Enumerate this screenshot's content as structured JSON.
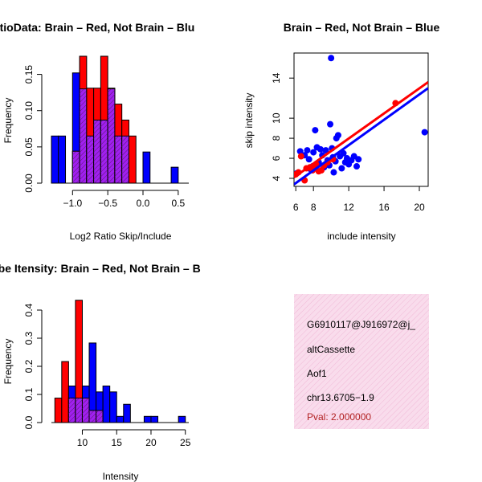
{
  "colors": {
    "red": "#ff0000",
    "blue": "#0000ff",
    "purple": "#a020f0",
    "pink_bg": "#f9dcec"
  },
  "chart_data": [
    {
      "type": "histogram",
      "title": "RatioData: Brain – Red, Not Brain – Blu",
      "xlabel": "Log2 Ratio Skip/Include",
      "ylabel": "Frequency",
      "xlim": [
        -1.3,
        0.65
      ],
      "ylim": [
        0,
        0.175
      ],
      "xticks": [
        -1.0,
        -0.5,
        0.0,
        0.5
      ],
      "xtick_labels": [
        "−1.0",
        "−0.5",
        "0.0",
        "0.5"
      ],
      "yticks": [
        0.0,
        0.05,
        0.1,
        0.15
      ],
      "ytick_labels": [
        "0.00",
        "0.05",
        "0.10",
        "0.15"
      ],
      "bin_edges": [
        -1.3,
        -1.2,
        -1.1,
        -1.0,
        -0.9,
        -0.8,
        -0.7,
        -0.6,
        -0.5,
        -0.4,
        -0.3,
        -0.2,
        -0.1,
        0.0,
        0.1,
        0.2,
        0.3,
        0.4,
        0.5,
        0.6
      ],
      "series": [
        {
          "name": "Brain",
          "color": "red",
          "values": [
            0,
            0,
            0,
            0.044,
            0.175,
            0.131,
            0.131,
            0.175,
            0.131,
            0.109,
            0.087,
            0.065,
            0,
            0,
            0,
            0,
            0,
            0,
            0
          ]
        },
        {
          "name": "Not Brain",
          "color": "blue",
          "values": [
            0.065,
            0.065,
            0,
            0.152,
            0.13,
            0.065,
            0.087,
            0.087,
            0.13,
            0.065,
            0.065,
            0,
            0,
            0.043,
            0,
            0,
            0,
            0.022,
            0
          ]
        }
      ]
    },
    {
      "type": "scatter",
      "title": "Brain – Red, Not Brain – Blue",
      "xlabel": "include intensity",
      "ylabel": "skip intensity",
      "xlim": [
        5.8,
        21
      ],
      "ylim": [
        3.2,
        16.5
      ],
      "xticks": [
        6,
        8,
        12,
        16,
        20
      ],
      "xtick_labels": [
        "6",
        "8",
        "12",
        "16",
        "20"
      ],
      "yticks": [
        4,
        6,
        8,
        10,
        14
      ],
      "ytick_labels": [
        "4",
        "6",
        "8",
        "10",
        "14"
      ],
      "series": [
        {
          "name": "Brain",
          "color": "red",
          "points": [
            [
              6.0,
              4.4
            ],
            [
              6.3,
              4.6
            ],
            [
              6.6,
              6.2
            ],
            [
              7.0,
              3.8
            ],
            [
              7.2,
              5.0
            ],
            [
              7.6,
              5.1
            ],
            [
              7.9,
              4.8
            ],
            [
              8.1,
              5.0
            ],
            [
              8.3,
              5.4
            ],
            [
              8.6,
              4.7
            ],
            [
              8.9,
              4.8
            ],
            [
              9.2,
              5.3
            ],
            [
              9.6,
              5.6
            ],
            [
              10.2,
              5.9
            ],
            [
              17.3,
              11.5
            ]
          ],
          "fit_line": [
            [
              5.8,
              4.1
            ],
            [
              21,
              13.6
            ]
          ]
        },
        {
          "name": "Not Brain",
          "color": "blue",
          "points": [
            [
              6.1,
              4.5
            ],
            [
              6.5,
              6.7
            ],
            [
              7.0,
              6.3
            ],
            [
              7.3,
              6.8
            ],
            [
              7.5,
              5.9
            ],
            [
              7.7,
              4.9
            ],
            [
              7.9,
              5.2
            ],
            [
              8.0,
              6.6
            ],
            [
              8.2,
              8.8
            ],
            [
              8.4,
              7.1
            ],
            [
              8.6,
              5.6
            ],
            [
              8.8,
              6.9
            ],
            [
              9.0,
              6.3
            ],
            [
              9.2,
              5.1
            ],
            [
              9.4,
              6.8
            ],
            [
              9.6,
              5.8
            ],
            [
              9.8,
              5.3
            ],
            [
              9.9,
              9.4
            ],
            [
              10.0,
              16.0
            ],
            [
              10.1,
              7.0
            ],
            [
              10.2,
              6.1
            ],
            [
              10.3,
              4.6
            ],
            [
              10.5,
              5.7
            ],
            [
              10.6,
              8.0
            ],
            [
              10.8,
              8.3
            ],
            [
              11.0,
              6.2
            ],
            [
              11.2,
              5.0
            ],
            [
              11.4,
              6.5
            ],
            [
              11.6,
              5.6
            ],
            [
              11.8,
              6.0
            ],
            [
              12.0,
              5.4
            ],
            [
              12.3,
              5.8
            ],
            [
              12.6,
              6.2
            ],
            [
              12.9,
              5.2
            ],
            [
              13.1,
              5.9
            ],
            [
              20.6,
              8.6
            ]
          ],
          "fit_line": [
            [
              5.8,
              3.4
            ],
            [
              21,
              13.0
            ]
          ]
        }
      ]
    },
    {
      "type": "histogram",
      "title": "Probe Itensity: Brain – Red, Not Brain – B",
      "xlabel": "Intensity",
      "ylabel": "Frequency",
      "xlim": [
        5.5,
        25.5
      ],
      "ylim": [
        0,
        0.44
      ],
      "xticks": [
        10,
        15,
        20,
        25
      ],
      "xtick_labels": [
        "10",
        "15",
        "20",
        "25"
      ],
      "yticks": [
        0.0,
        0.1,
        0.2,
        0.3,
        0.4
      ],
      "ytick_labels": [
        "0.0",
        "0.1",
        "0.2",
        "0.3",
        "0.4"
      ],
      "bin_edges": [
        6,
        7,
        8,
        9,
        10,
        11,
        12,
        13,
        14,
        15,
        16,
        17,
        18,
        19,
        20,
        21,
        22,
        23,
        24,
        25
      ],
      "series": [
        {
          "name": "Brain",
          "color": "red",
          "values": [
            0.087,
            0.217,
            0.087,
            0.435,
            0.087,
            0.043,
            0.043,
            0,
            0,
            0,
            0,
            0,
            0,
            0,
            0,
            0,
            0,
            0,
            0
          ]
        },
        {
          "name": "Not Brain",
          "color": "blue",
          "values": [
            0,
            0,
            0.13,
            0.087,
            0.13,
            0.283,
            0.109,
            0.13,
            0.109,
            0.022,
            0.065,
            0,
            0,
            0.022,
            0.022,
            0,
            0,
            0,
            0.022
          ]
        }
      ]
    }
  ],
  "info_panel": {
    "probe_id": "G6910117@J916972@j_",
    "event_type": "altCassette",
    "gene": "Aof1",
    "location": "chr13.6705−1.9",
    "pval": "Pval: 2.000000"
  }
}
